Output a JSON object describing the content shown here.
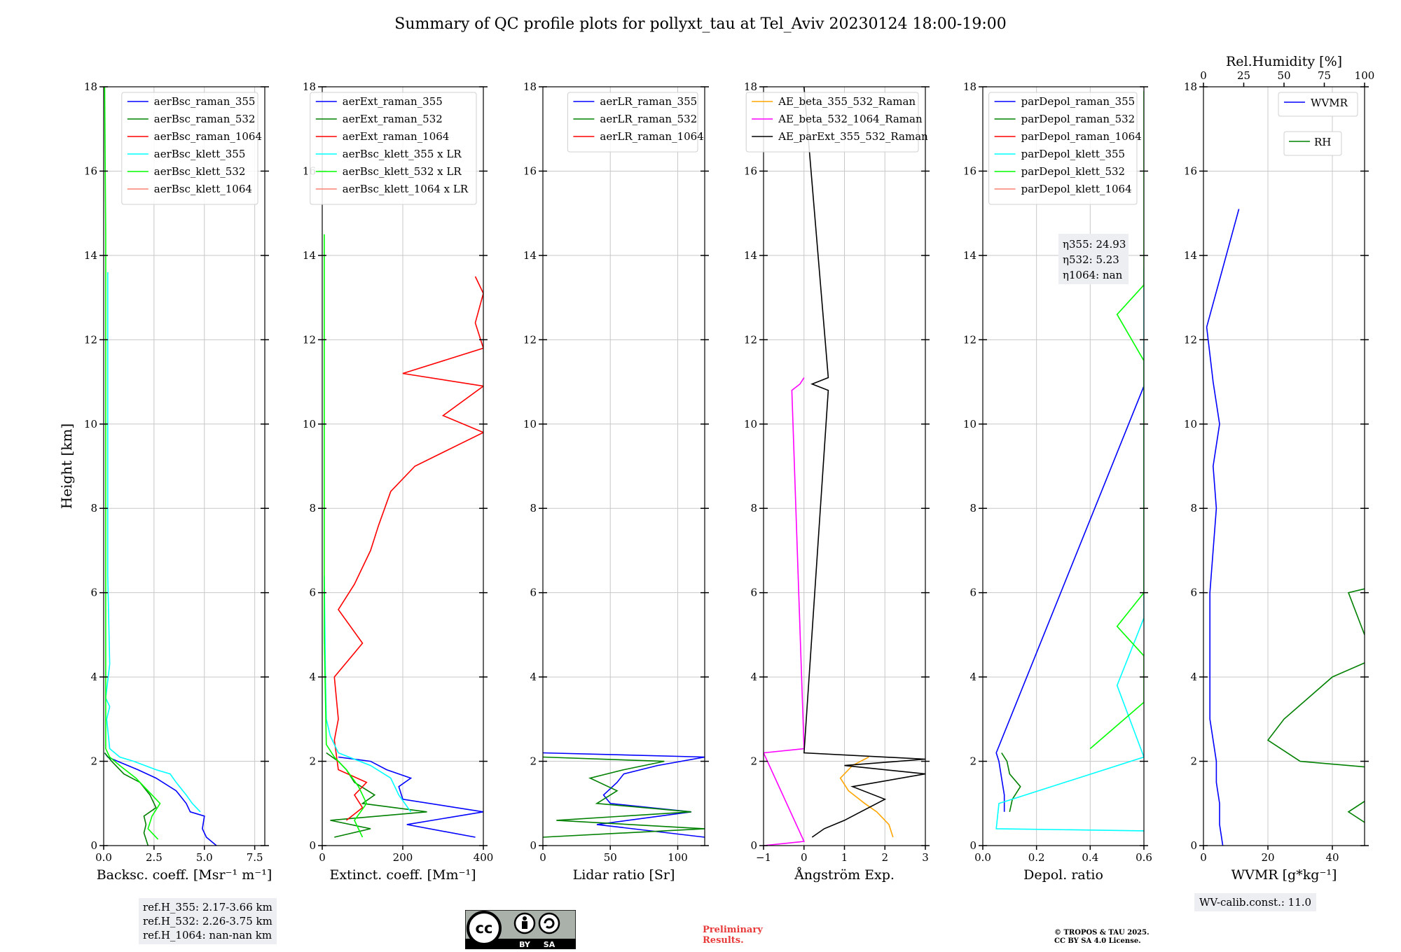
{
  "title": "Summary of QC profile plots for pollyxt_tau at Tel_Aviv 20230124 18:00-19:00",
  "ylabel": "Height [km]",
  "chart_data": [
    {
      "type": "line",
      "xlabel": "Backsc. coeff. [Msr⁻¹ m⁻¹]",
      "xlim": [
        0,
        8
      ],
      "xticks": [
        0.0,
        2.5,
        5.0,
        7.5
      ],
      "xtick_labels": [
        "0.0",
        "2.5",
        "5.0",
        "7.5"
      ],
      "ylim": [
        0,
        18
      ],
      "legend": "top-right",
      "series": [
        {
          "name": "aerBsc_raman_355",
          "color": "#0000ff",
          "y": [
            0,
            0.2,
            0.4,
            0.7,
            0.8,
            1.0,
            1.3,
            1.6,
            1.8,
            2.0,
            2.1,
            2.2
          ],
          "x": [
            5.6,
            5.1,
            4.9,
            5.0,
            4.3,
            4.1,
            3.6,
            2.6,
            1.7,
            0.7,
            0.2,
            0.05
          ]
        },
        {
          "name": "aerBsc_raman_532",
          "color": "#008000",
          "y": [
            0,
            0.3,
            0.5,
            0.7,
            0.9,
            1.2,
            1.5,
            1.7,
            2.0,
            2.2
          ],
          "x": [
            2.2,
            2.0,
            2.1,
            2.0,
            2.6,
            2.3,
            1.8,
            1.0,
            0.4,
            0.05
          ]
        },
        {
          "name": "aerBsc_raman_1064",
          "color": "#ff0000",
          "y": [],
          "x": []
        },
        {
          "name": "aerBsc_klett_355",
          "color": "#00ffff",
          "y": [
            0.8,
            1.0,
            1.2,
            1.5,
            1.7,
            1.8,
            2.0,
            2.1,
            2.3,
            3.0,
            3.3,
            3.5,
            4.3,
            6.4,
            13.6
          ],
          "x": [
            4.8,
            4.4,
            4.1,
            3.6,
            3.3,
            2.6,
            1.5,
            0.8,
            0.3,
            0.15,
            0.3,
            0.1,
            0.3,
            0.2,
            0.2
          ]
        },
        {
          "name": "aerBsc_klett_532",
          "color": "#00ff00",
          "y": [
            0.15,
            0.4,
            0.7,
            1.0,
            1.3,
            1.6,
            1.9,
            2.1,
            2.3,
            4.0,
            8.0,
            12.0,
            14.5,
            18.0
          ],
          "x": [
            2.7,
            2.2,
            2.4,
            2.8,
            2.2,
            1.6,
            0.8,
            0.3,
            0.1,
            0.1,
            0.1,
            0.1,
            0.1,
            0.05
          ]
        },
        {
          "name": "aerBsc_klett_1064",
          "color": "#fa8072",
          "y": [],
          "x": []
        }
      ]
    },
    {
      "type": "line",
      "xlabel": "Extinct. coeff. [Mm⁻¹]",
      "xlim": [
        0,
        400
      ],
      "xticks": [
        0,
        200,
        400
      ],
      "xtick_labels": [
        "0",
        "200",
        "400"
      ],
      "ylim": [
        0,
        18
      ],
      "legend": "top-right",
      "series": [
        {
          "name": "aerExt_raman_355",
          "color": "#0000ff",
          "y": [
            0.2,
            0.5,
            0.8,
            1.1,
            1.4,
            1.6,
            1.8,
            2.0,
            2.1
          ],
          "x": [
            380,
            210,
            400,
            200,
            190,
            220,
            160,
            120,
            40
          ]
        },
        {
          "name": "aerExt_raman_532",
          "color": "#008000",
          "y": [
            0.2,
            0.4,
            0.6,
            0.8,
            1.0,
            1.2,
            1.5,
            1.8,
            2.0,
            2.2
          ],
          "x": [
            30,
            120,
            20,
            260,
            100,
            130,
            80,
            60,
            40,
            10
          ]
        },
        {
          "name": "aerExt_raman_1064",
          "color": "#ff0000",
          "y": [
            0.6,
            0.9,
            1.2,
            1.5,
            1.8,
            2.5,
            3.0,
            4.0,
            4.8,
            5.6,
            6.2,
            7.0,
            7.6,
            8.4,
            9.0,
            9.8,
            10.2,
            10.9,
            11.2,
            11.8,
            12.4,
            13.1,
            13.5
          ],
          "x": [
            60,
            100,
            80,
            110,
            40,
            30,
            40,
            30,
            100,
            40,
            80,
            120,
            140,
            170,
            230,
            400,
            300,
            400,
            200,
            400,
            380,
            400,
            380
          ]
        },
        {
          "name": "aerBsc_klett_355 x LR",
          "color": "#00ffff",
          "y": [
            0.8,
            1.2,
            1.6,
            1.9,
            2.2,
            2.6,
            3.0,
            4.0,
            6.4
          ],
          "x": [
            220,
            190,
            170,
            120,
            40,
            20,
            10,
            8,
            5
          ]
        },
        {
          "name": "aerBsc_klett_532 x LR",
          "color": "#00ff00",
          "y": [
            0.2,
            0.6,
            1.0,
            1.4,
            1.8,
            2.1,
            2.4,
            5.0,
            14.5
          ],
          "x": [
            100,
            80,
            110,
            90,
            60,
            30,
            10,
            5,
            5
          ]
        },
        {
          "name": "aerBsc_klett_1064 x LR",
          "color": "#fa8072",
          "y": [],
          "x": []
        }
      ]
    },
    {
      "type": "line",
      "xlabel": "Lidar ratio [Sr]",
      "xlim": [
        0,
        120
      ],
      "xticks": [
        0,
        50,
        100
      ],
      "xtick_labels": [
        "0",
        "50",
        "100"
      ],
      "ylim": [
        0,
        18
      ],
      "legend": "top-right",
      "series": [
        {
          "name": "aerLR_raman_355",
          "color": "#0000ff",
          "y": [
            0.2,
            0.5,
            0.8,
            1.0,
            1.2,
            1.5,
            1.7,
            1.9,
            2.1,
            2.2
          ],
          "x": [
            120,
            40,
            110,
            50,
            45,
            55,
            60,
            85,
            120,
            0
          ]
        },
        {
          "name": "aerLR_raman_532",
          "color": "#008000",
          "y": [
            0.2,
            0.4,
            0.6,
            0.8,
            1.0,
            1.3,
            1.6,
            1.8,
            2.0,
            2.1
          ],
          "x": [
            0,
            120,
            10,
            110,
            40,
            55,
            35,
            60,
            90,
            0
          ]
        },
        {
          "name": "aerLR_raman_1064",
          "color": "#ff0000",
          "y": [],
          "x": []
        }
      ]
    },
    {
      "type": "line",
      "xlabel": "Ångström Exp.",
      "xlim": [
        -1,
        3
      ],
      "xticks": [
        -1,
        0,
        1,
        2,
        3
      ],
      "xtick_labels": [
        "−1",
        "0",
        "1",
        "2",
        "3"
      ],
      "ylim": [
        0,
        18
      ],
      "legend": "top-right",
      "series": [
        {
          "name": "AE_beta_355_532_Raman",
          "color": "#ffa500",
          "y": [
            0.2,
            0.5,
            0.8,
            1.0,
            1.3,
            1.6,
            1.9,
            2.1
          ],
          "x": [
            2.2,
            2.1,
            1.8,
            1.5,
            1.1,
            0.9,
            1.2,
            1.6
          ]
        },
        {
          "name": "AE_beta_532_1064_Raman",
          "color": "#ff00ff",
          "y": [
            0.0,
            0.1,
            2.2,
            2.3,
            10.8,
            10.95,
            11.1
          ],
          "x": [
            -1,
            0,
            -1,
            0,
            -0.3,
            -0.1,
            0
          ]
        },
        {
          "name": "AE_parExt_355_532_Raman",
          "color": "#000000",
          "y": [
            0.2,
            0.4,
            0.6,
            0.8,
            1.1,
            1.4,
            1.7,
            1.9,
            2.05,
            2.2,
            10.8,
            10.95,
            11.1,
            18.0
          ],
          "x": [
            0.2,
            0.5,
            1.0,
            1.4,
            2.0,
            1.2,
            3.0,
            1.0,
            3.0,
            0,
            0.6,
            0.2,
            0.6,
            0
          ]
        }
      ]
    },
    {
      "type": "line",
      "xlabel": "Depol. ratio",
      "xlim": [
        0,
        0.6
      ],
      "xticks": [
        0.0,
        0.2,
        0.4,
        0.6
      ],
      "xtick_labels": [
        "0.0",
        "0.2",
        "0.4",
        "0.6"
      ],
      "ylim": [
        0,
        18
      ],
      "legend": "top-right",
      "annotation": [
        "η355: 24.93",
        "η532: 5.23",
        "η1064: nan"
      ],
      "series": [
        {
          "name": "parDepol_raman_355",
          "color": "#0000ff",
          "y": [
            0.8,
            1.2,
            1.6,
            2.0,
            2.2,
            10.9
          ],
          "x": [
            0.08,
            0.08,
            0.07,
            0.06,
            0.05,
            0.6
          ]
        },
        {
          "name": "parDepol_raman_532",
          "color": "#008000",
          "y": [
            0.8,
            1.1,
            1.4,
            1.7,
            2.0,
            2.2
          ],
          "x": [
            0.1,
            0.11,
            0.14,
            0.1,
            0.09,
            0.07
          ]
        },
        {
          "name": "parDepol_raman_1064",
          "color": "#ff0000",
          "y": [],
          "x": []
        },
        {
          "name": "parDepol_klett_355",
          "color": "#00ffff",
          "y": [
            0.35,
            0.4,
            1.0,
            2.1,
            3.8,
            5.4,
            6.4,
            8.4,
            10.8,
            13.7
          ],
          "x": [
            0.6,
            0.05,
            0.06,
            0.6,
            0.5,
            0.6,
            0.6,
            0.6,
            0.6,
            0.6
          ]
        },
        {
          "name": "parDepol_klett_532",
          "color": "#00ff00",
          "y": [
            2.3,
            3.4,
            4.5,
            5.2,
            6.0,
            7.3,
            8.0,
            9.1,
            10.0,
            11.5,
            12.6,
            13.3,
            15.3,
            17.9
          ],
          "x": [
            0.4,
            0.6,
            0.6,
            0.5,
            0.6,
            0.6,
            0.6,
            0.6,
            0.6,
            0.6,
            0.5,
            0.6,
            0.6,
            0.6
          ]
        },
        {
          "name": "parDepol_klett_1064",
          "color": "#fa8072",
          "y": [],
          "x": []
        }
      ]
    },
    {
      "type": "line",
      "xlabel": "WVMR [g*kg⁻¹]",
      "xlim": [
        0,
        50
      ],
      "xticks": [
        0,
        20,
        40
      ],
      "xtick_labels": [
        "0",
        "20",
        "40"
      ],
      "x2label": "Rel.Humidity [%]",
      "x2lim": [
        0,
        100
      ],
      "x2ticks": [
        0,
        25,
        50,
        75,
        100
      ],
      "x2tick_labels": [
        "0",
        "25",
        "50",
        "75",
        "100"
      ],
      "ylim": [
        0,
        18
      ],
      "series": [
        {
          "name": "WVMR",
          "color": "#0000ff",
          "y": [
            0,
            0.5,
            1.0,
            1.5,
            2.0,
            2.5,
            3.0,
            4.0,
            5.0,
            6.0,
            7.0,
            8.0,
            9.0,
            10.0,
            11.0,
            12.3,
            15.1
          ],
          "x": [
            6,
            5,
            5,
            4,
            4,
            3,
            2,
            2,
            2,
            2,
            3,
            4,
            3,
            5,
            3,
            1,
            11
          ]
        },
        {
          "name": "RH",
          "color": "#008000",
          "y": [
            0,
            0.3,
            0.8,
            1.3,
            1.8,
            2.0,
            2.5,
            3.0,
            4.0,
            4.5,
            5.0,
            6.0,
            7.0,
            7.5,
            8.0,
            8.5
          ],
          "x": [
            100,
            55,
            45,
            55,
            60,
            30,
            20,
            25,
            40,
            55,
            50,
            45,
            100,
            70,
            100,
            90
          ]
        }
      ]
    }
  ],
  "ref_heights": [
    "ref.H_355: 2.17-3.66 km",
    "ref.H_532: 2.26-3.75 km",
    "ref.H_1064: nan-nan km"
  ],
  "wv_calib": "WV-calib.const.: 11.0",
  "preliminary": [
    "Preliminary",
    "Results."
  ],
  "copyright": [
    "© TROPOS & TAU 2025.",
    "CC BY SA 4.0 License."
  ],
  "license_badge": {
    "cc": "cc",
    "by": "BY",
    "sa": "SA"
  }
}
